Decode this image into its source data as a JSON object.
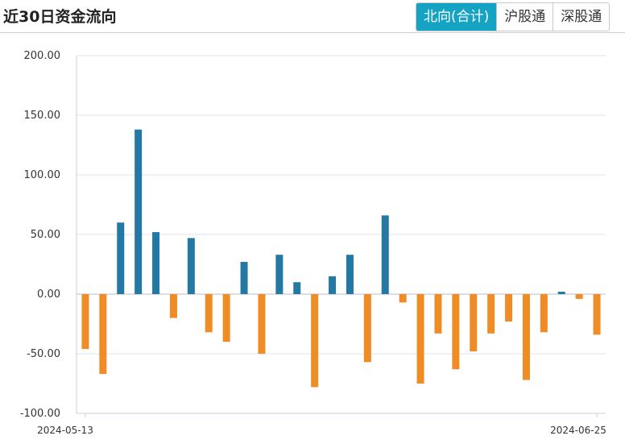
{
  "header": {
    "title": "近30日资金流向",
    "tabs": [
      {
        "label": "北向(合计)",
        "active": true
      },
      {
        "label": "沪股通",
        "active": false
      },
      {
        "label": "深股通",
        "active": false
      }
    ]
  },
  "colors": {
    "positive": "#2379a3",
    "negative": "#f08c26",
    "tab_active": "#15a3c3",
    "gridline": "#dde3ec"
  },
  "chart_data": {
    "type": "bar",
    "title": "",
    "xlabel": "",
    "ylabel": "",
    "ylim": [
      -100,
      200
    ],
    "yticks": [
      "200.00",
      "150.00",
      "100.00",
      "50.00",
      "0.00",
      "-50.00",
      "-100.00"
    ],
    "x_first_label": "2024-05-13",
    "x_last_label": "2024-06-25",
    "grid": true,
    "legend": "none",
    "values": [
      -46,
      -67,
      60,
      138,
      52,
      -20,
      47,
      -32,
      -40,
      27,
      -50,
      33,
      10,
      -78,
      15,
      33,
      -57,
      66,
      -7,
      -75,
      -33,
      -63,
      -48,
      -33,
      -23,
      -72,
      -32,
      2,
      -4,
      -34
    ]
  }
}
